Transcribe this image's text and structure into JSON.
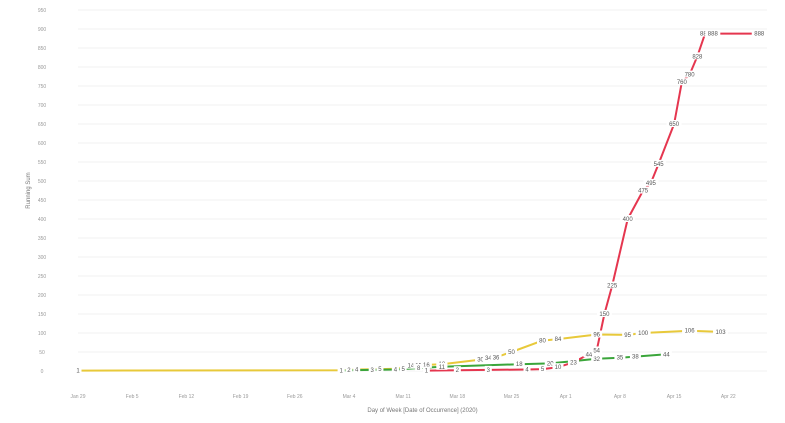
{
  "chart_data": {
    "type": "line",
    "xlabel": "Day of Week [Date of Occurrence] (2020)",
    "ylabel": "Running Sum",
    "ylim": [
      0,
      950
    ],
    "yticks": [
      0,
      50,
      100,
      150,
      200,
      250,
      300,
      350,
      400,
      450,
      500,
      550,
      600,
      650,
      700,
      750,
      800,
      850,
      900,
      950
    ],
    "xticks": [
      {
        "x": 0,
        "label": "Jan 29"
      },
      {
        "x": 7,
        "label": "Feb 5"
      },
      {
        "x": 14,
        "label": "Feb 12"
      },
      {
        "x": 21,
        "label": "Feb 19"
      },
      {
        "x": 28,
        "label": "Feb 26"
      },
      {
        "x": 35,
        "label": "Mar 4"
      },
      {
        "x": 42,
        "label": "Mar 11"
      },
      {
        "x": 49,
        "label": "Mar 18"
      },
      {
        "x": 56,
        "label": "Mar 25"
      },
      {
        "x": 63,
        "label": "Apr 1"
      },
      {
        "x": 70,
        "label": "Apr 8"
      },
      {
        "x": 77,
        "label": "Apr 15"
      },
      {
        "x": 84,
        "label": "Apr 22"
      }
    ],
    "series": [
      {
        "color": "#e8c93a",
        "points": [
          {
            "x": 0,
            "y": 1,
            "label": "1"
          },
          {
            "x": 34,
            "y": 2,
            "label": "2"
          },
          {
            "x": 36,
            "y": 4,
            "label": "4"
          },
          {
            "x": 39,
            "y": 5,
            "label": "5"
          },
          {
            "x": 41,
            "y": 6,
            "label": "6"
          },
          {
            "x": 43,
            "y": 14,
            "label": "14"
          },
          {
            "x": 44,
            "y": 15,
            "label": "15"
          },
          {
            "x": 45,
            "y": 16,
            "label": "16"
          },
          {
            "x": 47,
            "y": 18,
            "label": "18"
          },
          {
            "x": 52,
            "y": 30,
            "label": "30"
          },
          {
            "x": 53,
            "y": 34,
            "label": "34"
          },
          {
            "x": 54,
            "y": 36,
            "label": "36"
          },
          {
            "x": 56,
            "y": 50,
            "label": "50"
          },
          {
            "x": 60,
            "y": 80,
            "label": "80"
          },
          {
            "x": 62,
            "y": 84,
            "label": "84"
          },
          {
            "x": 67,
            "y": 96,
            "label": "96"
          },
          {
            "x": 71,
            "y": 95,
            "label": "95"
          },
          {
            "x": 73,
            "y": 100,
            "label": "100"
          },
          {
            "x": 79,
            "y": 106,
            "label": "106"
          },
          {
            "x": 83,
            "y": 103,
            "label": "103"
          }
        ]
      },
      {
        "color": "#3aa53a",
        "points": [
          {
            "x": 34,
            "y": 1,
            "label": "1"
          },
          {
            "x": 35,
            "y": 2,
            "label": "2"
          },
          {
            "x": 38,
            "y": 3,
            "label": "3"
          },
          {
            "x": 41,
            "y": 4,
            "label": "4"
          },
          {
            "x": 42,
            "y": 5,
            "label": "5"
          },
          {
            "x": 44,
            "y": 8,
            "label": "8"
          },
          {
            "x": 47,
            "y": 11,
            "label": "11"
          },
          {
            "x": 57,
            "y": 18,
            "label": "18"
          },
          {
            "x": 61,
            "y": 20,
            "label": "20"
          },
          {
            "x": 64,
            "y": 26,
            "label": "26"
          },
          {
            "x": 67,
            "y": 32,
            "label": "32"
          },
          {
            "x": 70,
            "y": 35,
            "label": "35"
          },
          {
            "x": 72,
            "y": 38,
            "label": "38"
          },
          {
            "x": 76,
            "y": 44,
            "label": "44"
          }
        ]
      },
      {
        "color": "#e5364f",
        "points": [
          {
            "x": 45,
            "y": 1,
            "label": "1"
          },
          {
            "x": 49,
            "y": 2,
            "label": "2"
          },
          {
            "x": 53,
            "y": 3,
            "label": "3"
          },
          {
            "x": 58,
            "y": 4,
            "label": "4"
          },
          {
            "x": 60,
            "y": 5,
            "label": "5"
          },
          {
            "x": 62,
            "y": 10,
            "label": "10"
          },
          {
            "x": 64,
            "y": 23,
            "label": "23"
          },
          {
            "x": 66,
            "y": 44,
            "label": "44"
          },
          {
            "x": 67,
            "y": 54,
            "label": "54"
          },
          {
            "x": 68,
            "y": 150,
            "label": "150"
          },
          {
            "x": 69,
            "y": 225,
            "label": "225"
          },
          {
            "x": 71,
            "y": 400,
            "label": "400"
          },
          {
            "x": 73,
            "y": 475,
            "label": "475"
          },
          {
            "x": 74,
            "y": 495,
            "label": "495"
          },
          {
            "x": 75,
            "y": 545,
            "label": "545"
          },
          {
            "x": 77,
            "y": 650,
            "label": "650"
          },
          {
            "x": 78,
            "y": 760,
            "label": "760"
          },
          {
            "x": 79,
            "y": 780,
            "label": "780"
          },
          {
            "x": 80,
            "y": 828,
            "label": "828"
          },
          {
            "x": 81,
            "y": 888,
            "label": "888"
          },
          {
            "x": 82,
            "y": 888,
            "label": "888"
          },
          {
            "x": 88,
            "y": 888,
            "label": "888"
          }
        ]
      }
    ]
  }
}
